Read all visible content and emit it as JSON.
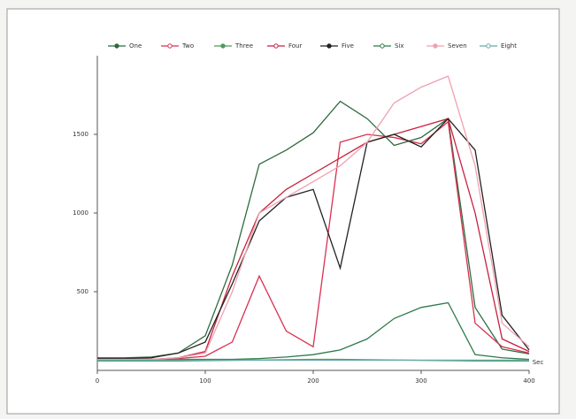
{
  "chart_data": {
    "type": "line",
    "x": [
      0,
      25,
      50,
      75,
      100,
      125,
      150,
      175,
      200,
      225,
      250,
      275,
      300,
      325,
      350,
      375,
      400
    ],
    "series": [
      {
        "name": "One",
        "color": "#2e6b3e",
        "values": [
          80,
          80,
          85,
          110,
          220,
          670,
          1310,
          1400,
          1510,
          1710,
          1600,
          1430,
          1480,
          1600,
          400,
          135,
          105
        ]
      },
      {
        "name": "Two",
        "color": "#d9304f",
        "values": [
          70,
          70,
          70,
          75,
          90,
          180,
          600,
          250,
          150,
          1450,
          1500,
          1480,
          1440,
          1580,
          300,
          150,
          110
        ]
      },
      {
        "name": "Three",
        "color": "#4f9a5a",
        "values": [
          60,
          60,
          60,
          60,
          62,
          64,
          66,
          68,
          70,
          70,
          68,
          66,
          64,
          62,
          60,
          60,
          60
        ]
      },
      {
        "name": "Four",
        "color": "#c8203c",
        "values": [
          70,
          70,
          70,
          80,
          120,
          600,
          1000,
          1150,
          1250,
          1350,
          1450,
          1500,
          1550,
          1600,
          1000,
          200,
          120
        ]
      },
      {
        "name": "Five",
        "color": "#222222",
        "values": [
          75,
          75,
          80,
          110,
          180,
          550,
          950,
          1100,
          1150,
          650,
          1450,
          1500,
          1420,
          1600,
          1400,
          350,
          130
        ]
      },
      {
        "name": "Six",
        "color": "#2e7a4a",
        "values": [
          70,
          70,
          70,
          70,
          70,
          70,
          75,
          85,
          100,
          130,
          200,
          330,
          400,
          430,
          100,
          80,
          70
        ]
      },
      {
        "name": "Seven",
        "color": "#f0a0b0",
        "values": [
          70,
          70,
          70,
          80,
          110,
          500,
          1000,
          1100,
          1200,
          1300,
          1450,
          1700,
          1800,
          1870,
          1300,
          300,
          150
        ]
      },
      {
        "name": "Eight",
        "color": "#66aaaa",
        "values": [
          65,
          65,
          65,
          65,
          65,
          65,
          65,
          65,
          65,
          65,
          65,
          65,
          65,
          65,
          65,
          65,
          65
        ]
      }
    ],
    "x_label": "Sec",
    "xlim": [
      0,
      400
    ],
    "xticks": [
      0,
      100,
      200,
      300,
      400
    ],
    "ylim": [
      0,
      2000
    ],
    "yticks": [
      500,
      1000,
      1500
    ]
  }
}
